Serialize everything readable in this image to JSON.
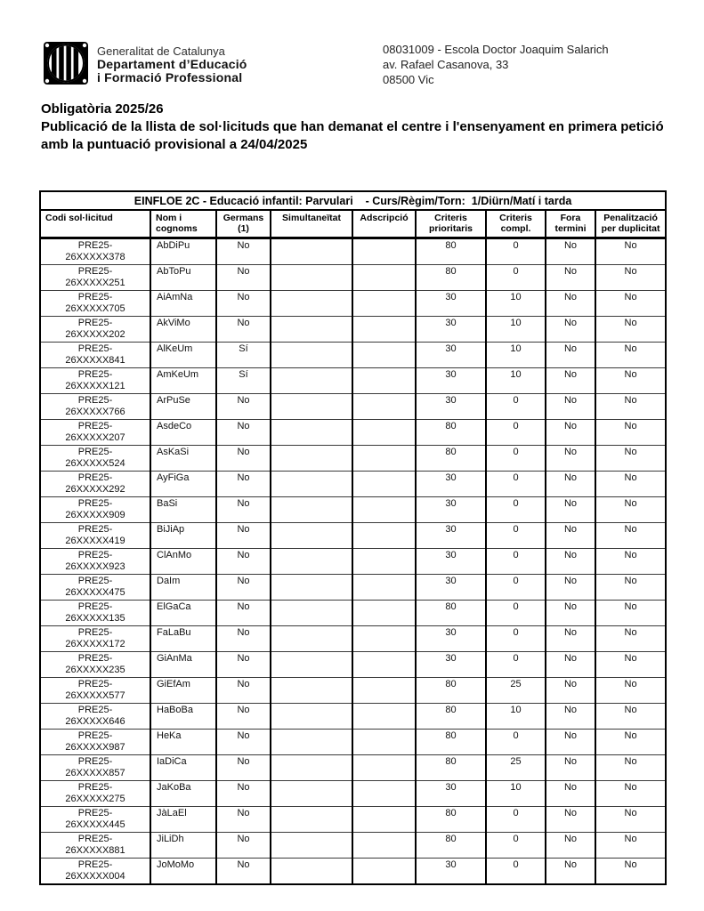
{
  "letterhead": {
    "org_line1": "Generalitat de Catalunya",
    "org_line2": "Departament d’Educació",
    "org_line3": "i Formació Professional",
    "school_line1": "08031009 - Escola Doctor Joaquim Salarich",
    "school_line2": "av. Rafael Casanova, 33",
    "school_line3": "08500 Vic"
  },
  "title": {
    "line1": "Obligatòria 2025/26",
    "line2": "Publicació de la llista de sol·licituds que han demanat el centre i l'ensenyament en primera petició amb la puntuació provisional a 24/04/2025"
  },
  "table": {
    "group_header": "EINFLOE 2C - Educació infantil: Parvulari    - Curs/Règim/Torn:  1/Diürn/Matí i tarda",
    "columns": [
      {
        "id": "codi",
        "lines": [
          "Codi sol·licitud"
        ]
      },
      {
        "id": "nom",
        "lines": [
          "Nom i",
          "cognoms"
        ]
      },
      {
        "id": "germans",
        "lines": [
          "Germans",
          "(1)"
        ]
      },
      {
        "id": "simultaneitat",
        "lines": [
          "Simultaneïtat"
        ]
      },
      {
        "id": "adscripcio",
        "lines": [
          "Adscripció"
        ]
      },
      {
        "id": "criteris-prioritaris",
        "lines": [
          "Criteris",
          "prioritaris"
        ]
      },
      {
        "id": "criteris-compl",
        "lines": [
          "Criteris",
          "compl."
        ]
      },
      {
        "id": "fora-termini",
        "lines": [
          "Fora",
          "termini"
        ]
      },
      {
        "id": "penalitzacio",
        "lines": [
          "Penalització",
          "per duplicitat"
        ]
      }
    ],
    "rows": [
      {
        "codi": [
          "PRE25-",
          "26XXXXX378"
        ],
        "nom": "AbDiPu",
        "germans": "No",
        "simultaneitat": "",
        "adscripcio": "",
        "prioritaris": "80",
        "compl": "0",
        "fora": "No",
        "penalitzacio": "No"
      },
      {
        "codi": [
          "PRE25-",
          "26XXXXX251"
        ],
        "nom": "AbToPu",
        "germans": "No",
        "simultaneitat": "",
        "adscripcio": "",
        "prioritaris": "80",
        "compl": "0",
        "fora": "No",
        "penalitzacio": "No"
      },
      {
        "codi": [
          "PRE25-",
          "26XXXXX705"
        ],
        "nom": "AiAmNa",
        "germans": "No",
        "simultaneitat": "",
        "adscripcio": "",
        "prioritaris": "30",
        "compl": "10",
        "fora": "No",
        "penalitzacio": "No"
      },
      {
        "codi": [
          "PRE25-",
          "26XXXXX202"
        ],
        "nom": "AkViMo",
        "germans": "No",
        "simultaneitat": "",
        "adscripcio": "",
        "prioritaris": "30",
        "compl": "10",
        "fora": "No",
        "penalitzacio": "No"
      },
      {
        "codi": [
          "PRE25-",
          "26XXXXX841"
        ],
        "nom": "AlKeUm",
        "germans": "Sí",
        "simultaneitat": "",
        "adscripcio": "",
        "prioritaris": "30",
        "compl": "10",
        "fora": "No",
        "penalitzacio": "No"
      },
      {
        "codi": [
          "PRE25-",
          "26XXXXX121"
        ],
        "nom": "AmKeUm",
        "germans": "Sí",
        "simultaneitat": "",
        "adscripcio": "",
        "prioritaris": "30",
        "compl": "10",
        "fora": "No",
        "penalitzacio": "No"
      },
      {
        "codi": [
          "PRE25-",
          "26XXXXX766"
        ],
        "nom": "ArPuSe",
        "germans": "No",
        "simultaneitat": "",
        "adscripcio": "",
        "prioritaris": "30",
        "compl": "0",
        "fora": "No",
        "penalitzacio": "No"
      },
      {
        "codi": [
          "PRE25-",
          "26XXXXX207"
        ],
        "nom": "AsdeCo",
        "germans": "No",
        "simultaneitat": "",
        "adscripcio": "",
        "prioritaris": "80",
        "compl": "0",
        "fora": "No",
        "penalitzacio": "No"
      },
      {
        "codi": [
          "PRE25-",
          "26XXXXX524"
        ],
        "nom": "AsKaSi",
        "germans": "No",
        "simultaneitat": "",
        "adscripcio": "",
        "prioritaris": "80",
        "compl": "0",
        "fora": "No",
        "penalitzacio": "No"
      },
      {
        "codi": [
          "PRE25-",
          "26XXXXX292"
        ],
        "nom": "AyFiGa",
        "germans": "No",
        "simultaneitat": "",
        "adscripcio": "",
        "prioritaris": "30",
        "compl": "0",
        "fora": "No",
        "penalitzacio": "No"
      },
      {
        "codi": [
          "PRE25-",
          "26XXXXX909"
        ],
        "nom": "BaSi",
        "germans": "No",
        "simultaneitat": "",
        "adscripcio": "",
        "prioritaris": "30",
        "compl": "0",
        "fora": "No",
        "penalitzacio": "No"
      },
      {
        "codi": [
          "PRE25-",
          "26XXXXX419"
        ],
        "nom": "BiJiAp",
        "germans": "No",
        "simultaneitat": "",
        "adscripcio": "",
        "prioritaris": "30",
        "compl": "0",
        "fora": "No",
        "penalitzacio": "No"
      },
      {
        "codi": [
          "PRE25-",
          "26XXXXX923"
        ],
        "nom": "ClAnMo",
        "germans": "No",
        "simultaneitat": "",
        "adscripcio": "",
        "prioritaris": "30",
        "compl": "0",
        "fora": "No",
        "penalitzacio": "No"
      },
      {
        "codi": [
          "PRE25-",
          "26XXXXX475"
        ],
        "nom": "DaIm",
        "germans": "No",
        "simultaneitat": "",
        "adscripcio": "",
        "prioritaris": "30",
        "compl": "0",
        "fora": "No",
        "penalitzacio": "No"
      },
      {
        "codi": [
          "PRE25-",
          "26XXXXX135"
        ],
        "nom": "ElGaCa",
        "germans": "No",
        "simultaneitat": "",
        "adscripcio": "",
        "prioritaris": "80",
        "compl": "0",
        "fora": "No",
        "penalitzacio": "No"
      },
      {
        "codi": [
          "PRE25-",
          "26XXXXX172"
        ],
        "nom": "FaLaBu",
        "germans": "No",
        "simultaneitat": "",
        "adscripcio": "",
        "prioritaris": "30",
        "compl": "0",
        "fora": "No",
        "penalitzacio": "No"
      },
      {
        "codi": [
          "PRE25-",
          "26XXXXX235"
        ],
        "nom": "GiAnMa",
        "germans": "No",
        "simultaneitat": "",
        "adscripcio": "",
        "prioritaris": "30",
        "compl": "0",
        "fora": "No",
        "penalitzacio": "No"
      },
      {
        "codi": [
          "PRE25-",
          "26XXXXX577"
        ],
        "nom": "GiEfAm",
        "germans": "No",
        "simultaneitat": "",
        "adscripcio": "",
        "prioritaris": "80",
        "compl": "25",
        "fora": "No",
        "penalitzacio": "No"
      },
      {
        "codi": [
          "PRE25-",
          "26XXXXX646"
        ],
        "nom": "HaBoBa",
        "germans": "No",
        "simultaneitat": "",
        "adscripcio": "",
        "prioritaris": "80",
        "compl": "10",
        "fora": "No",
        "penalitzacio": "No"
      },
      {
        "codi": [
          "PRE25-",
          "26XXXXX987"
        ],
        "nom": "HeKa",
        "germans": "No",
        "simultaneitat": "",
        "adscripcio": "",
        "prioritaris": "80",
        "compl": "0",
        "fora": "No",
        "penalitzacio": "No"
      },
      {
        "codi": [
          "PRE25-",
          "26XXXXX857"
        ],
        "nom": "IaDiCa",
        "germans": "No",
        "simultaneitat": "",
        "adscripcio": "",
        "prioritaris": "80",
        "compl": "25",
        "fora": "No",
        "penalitzacio": "No"
      },
      {
        "codi": [
          "PRE25-",
          "26XXXXX275"
        ],
        "nom": "JaKoBa",
        "germans": "No",
        "simultaneitat": "",
        "adscripcio": "",
        "prioritaris": "30",
        "compl": "10",
        "fora": "No",
        "penalitzacio": "No"
      },
      {
        "codi": [
          "PRE25-",
          "26XXXXX445"
        ],
        "nom": "JàLaEl",
        "germans": "No",
        "simultaneitat": "",
        "adscripcio": "",
        "prioritaris": "80",
        "compl": "0",
        "fora": "No",
        "penalitzacio": "No"
      },
      {
        "codi": [
          "PRE25-",
          "26XXXXX881"
        ],
        "nom": "JiLiDh",
        "germans": "No",
        "simultaneitat": "",
        "adscripcio": "",
        "prioritaris": "80",
        "compl": "0",
        "fora": "No",
        "penalitzacio": "No"
      },
      {
        "codi": [
          "PRE25-",
          "26XXXXX004"
        ],
        "nom": "JoMoMo",
        "germans": "No",
        "simultaneitat": "",
        "adscripcio": "",
        "prioritaris": "30",
        "compl": "0",
        "fora": "No",
        "penalitzacio": "No"
      }
    ]
  }
}
